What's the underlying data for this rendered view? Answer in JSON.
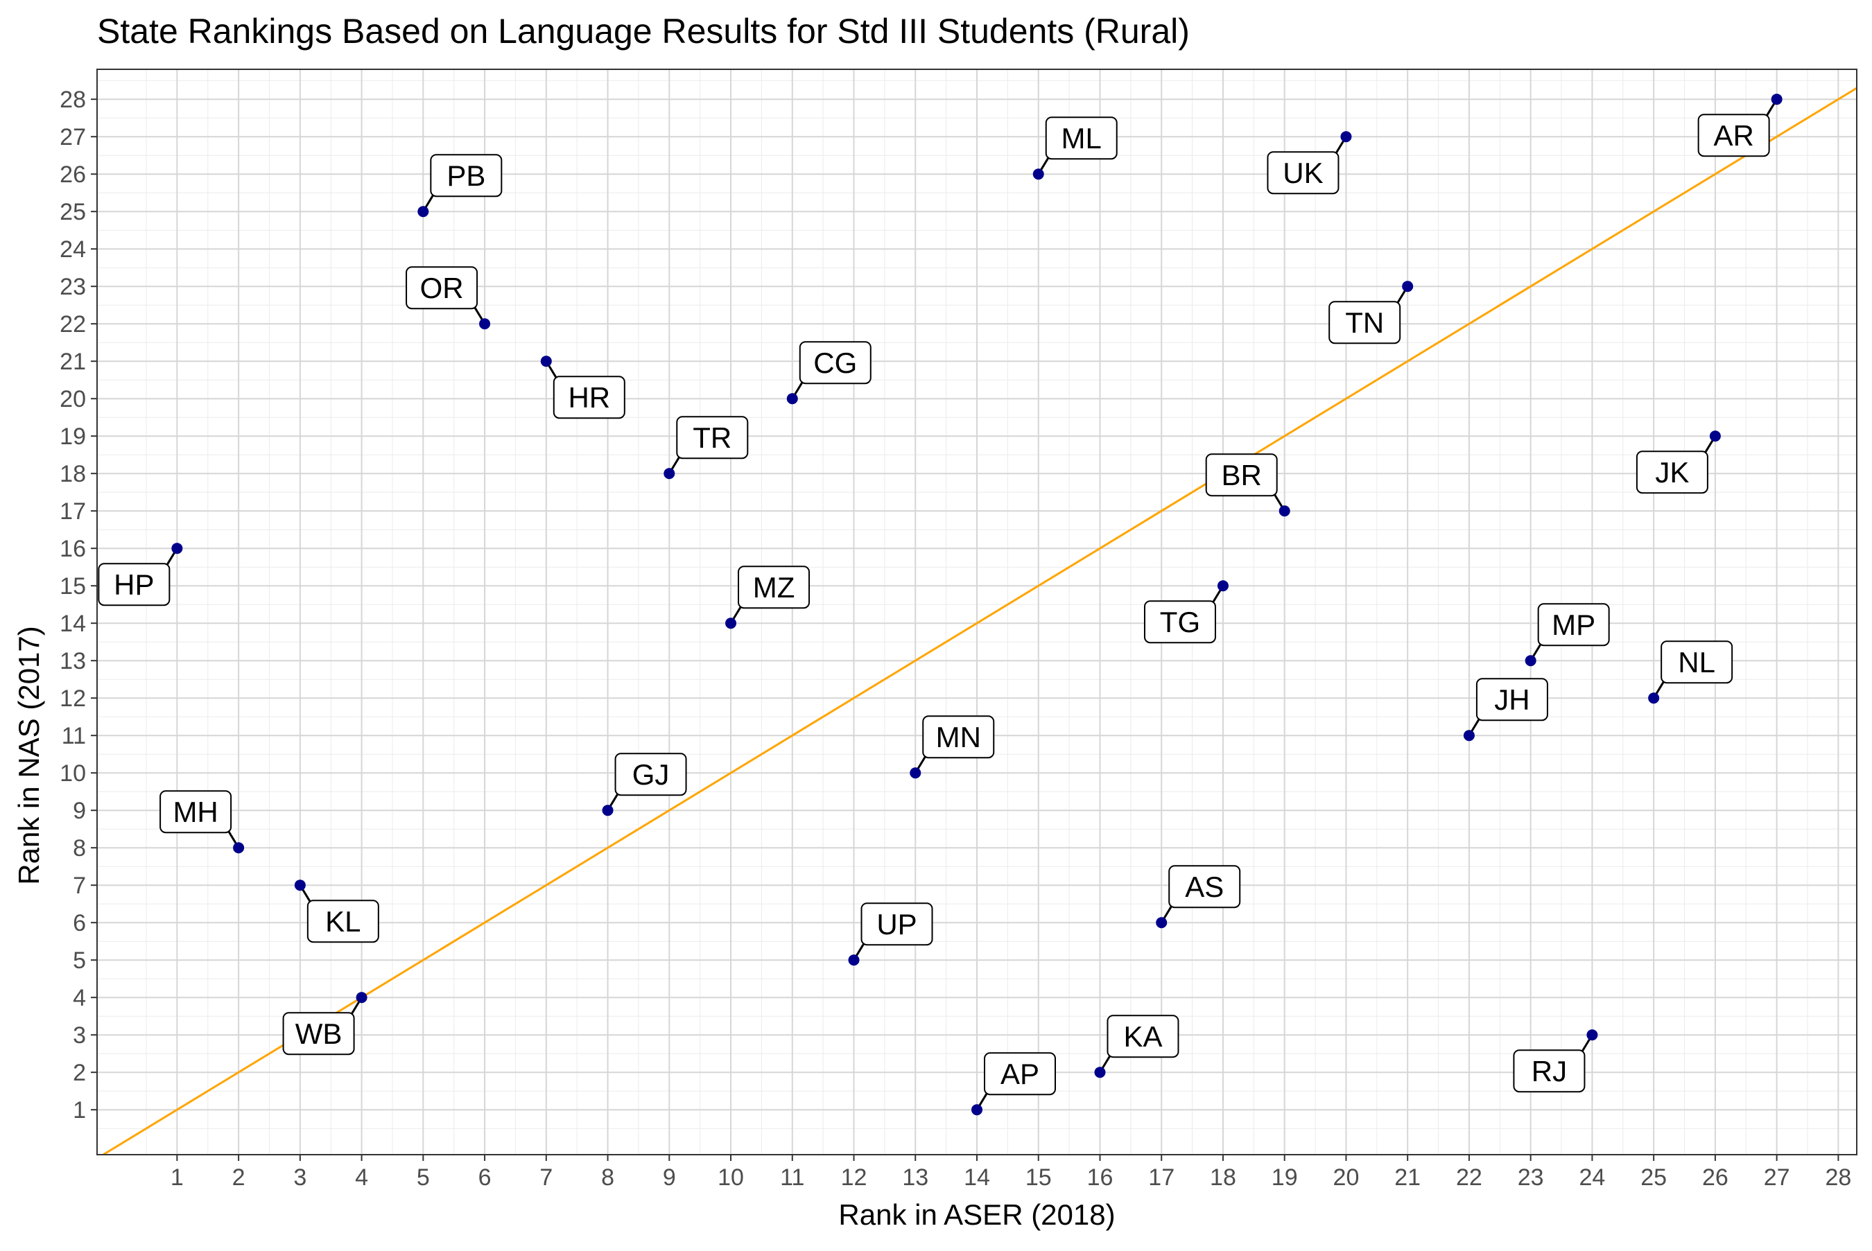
{
  "chart_data": {
    "type": "scatter",
    "title": "State Rankings Based on Language Results for Std III Students (Rural)",
    "xlabel": "Rank in ASER (2018)",
    "ylabel": "Rank in NAS (2017)",
    "xlim": [
      -0.3,
      28.3
    ],
    "ylim": [
      -0.2,
      28.8
    ],
    "xticks": [
      "1",
      "2",
      "3",
      "4",
      "5",
      "6",
      "7",
      "8",
      "9",
      "10",
      "11",
      "12",
      "13",
      "14",
      "15",
      "16",
      "17",
      "18",
      "19",
      "20",
      "21",
      "22",
      "23",
      "24",
      "25",
      "26",
      "27",
      "28"
    ],
    "yticks": [
      "1",
      "2",
      "3",
      "4",
      "5",
      "6",
      "7",
      "8",
      "9",
      "10",
      "11",
      "12",
      "13",
      "14",
      "15",
      "16",
      "17",
      "18",
      "19",
      "20",
      "21",
      "22",
      "23",
      "24",
      "25",
      "26",
      "27",
      "28"
    ],
    "grid": true,
    "reference_line": {
      "slope": 1,
      "intercept": 0,
      "color": "#FFA500"
    },
    "point_color": "#00008B",
    "points": [
      {
        "label": "HP",
        "x": 1,
        "y": 16
      },
      {
        "label": "MH",
        "x": 2,
        "y": 8
      },
      {
        "label": "KL",
        "x": 3,
        "y": 7
      },
      {
        "label": "WB",
        "x": 4,
        "y": 4
      },
      {
        "label": "PB",
        "x": 5,
        "y": 25
      },
      {
        "label": "OR",
        "x": 6,
        "y": 22
      },
      {
        "label": "HR",
        "x": 7,
        "y": 21
      },
      {
        "label": "GJ",
        "x": 8,
        "y": 9
      },
      {
        "label": "TR",
        "x": 9,
        "y": 18
      },
      {
        "label": "MZ",
        "x": 10,
        "y": 14
      },
      {
        "label": "CG",
        "x": 11,
        "y": 20
      },
      {
        "label": "UP",
        "x": 12,
        "y": 5
      },
      {
        "label": "MN",
        "x": 13,
        "y": 10
      },
      {
        "label": "AP",
        "x": 14,
        "y": 1
      },
      {
        "label": "ML",
        "x": 15,
        "y": 26
      },
      {
        "label": "KA",
        "x": 16,
        "y": 2
      },
      {
        "label": "AS",
        "x": 17,
        "y": 6
      },
      {
        "label": "TG",
        "x": 18,
        "y": 15
      },
      {
        "label": "BR",
        "x": 19,
        "y": 17
      },
      {
        "label": "UK",
        "x": 20,
        "y": 27
      },
      {
        "label": "TN",
        "x": 21,
        "y": 23
      },
      {
        "label": "JH",
        "x": 22,
        "y": 11
      },
      {
        "label": "MP",
        "x": 23,
        "y": 13
      },
      {
        "label": "RJ",
        "x": 24,
        "y": 3
      },
      {
        "label": "NL",
        "x": 25,
        "y": 12
      },
      {
        "label": "JK",
        "x": 26,
        "y": 19
      },
      {
        "label": "AR",
        "x": 27,
        "y": 28
      }
    ]
  }
}
